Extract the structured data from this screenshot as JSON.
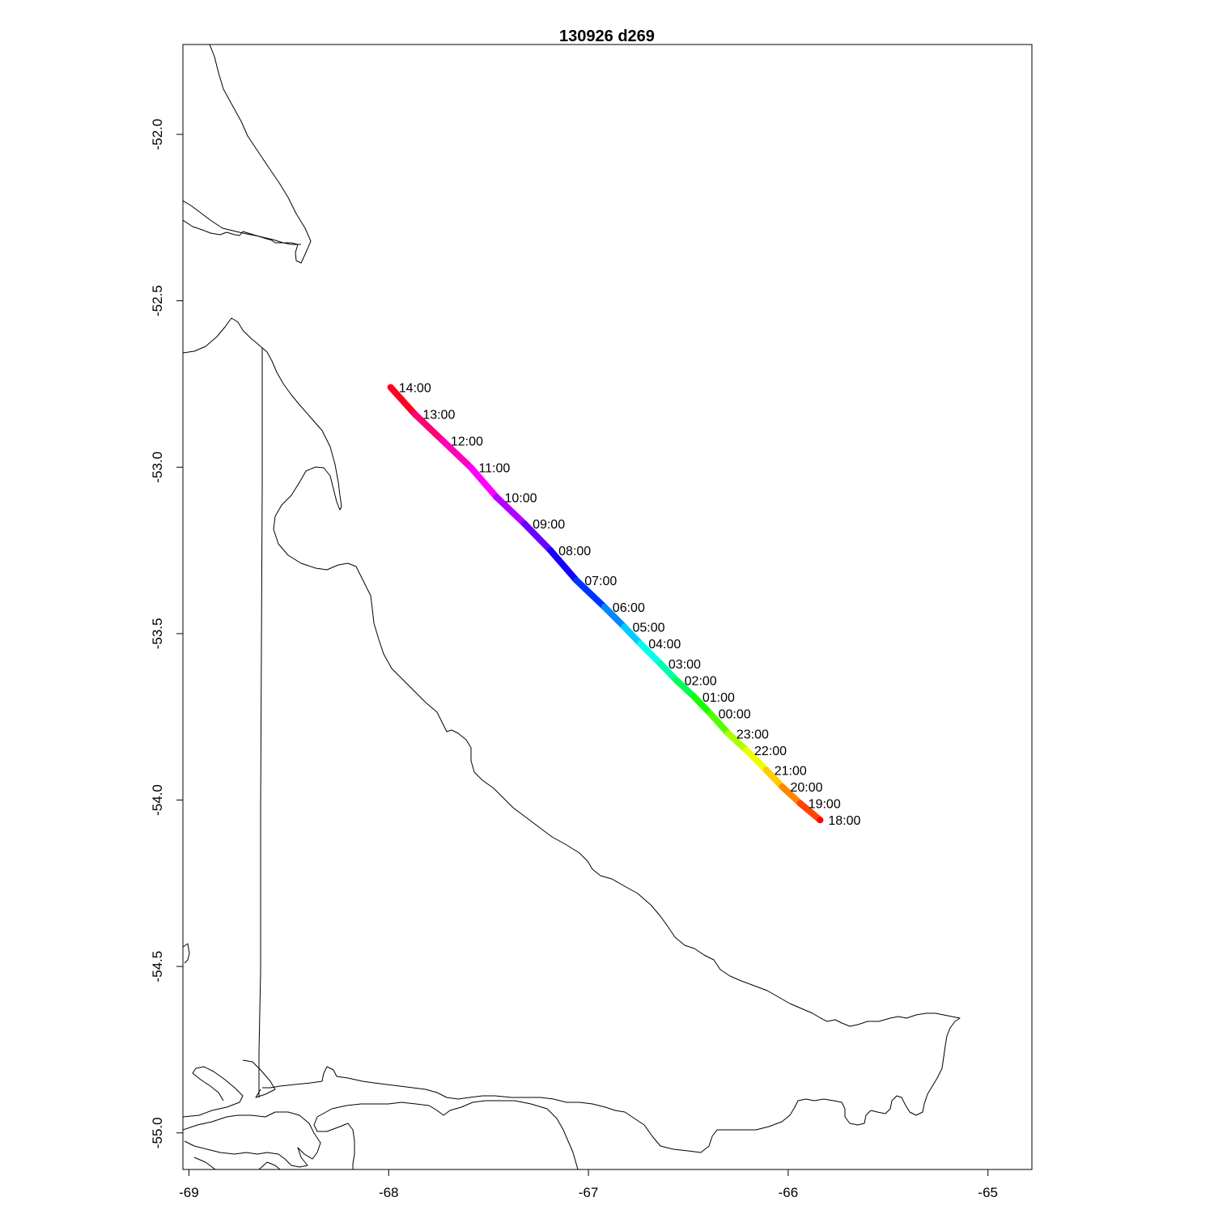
{
  "title": "130926   d269",
  "chart_data": {
    "type": "map",
    "title": "130926   d269",
    "xlabel": "",
    "ylabel": "",
    "xlim": [
      -69.03,
      -64.78
    ],
    "ylim": [
      -55.11,
      -51.73
    ],
    "x_ticks": [
      -69,
      -68,
      -67,
      -66,
      -65
    ],
    "x_tick_labels": [
      "-69",
      "-68",
      "-67",
      "-66",
      "-65"
    ],
    "y_ticks": [
      -52.0,
      -52.5,
      -53.0,
      -53.5,
      -54.0,
      -54.5,
      -55.0
    ],
    "y_tick_labels": [
      "-52.0",
      "-52.5",
      "-53.0",
      "-53.5",
      "-54.0",
      "-54.5",
      "-55.0"
    ],
    "grid": false,
    "track": {
      "color_scale": "rainbow (time)",
      "points": [
        {
          "label": "14:00",
          "lon": -67.99,
          "lat": -52.76,
          "color": "#ff0022"
        },
        {
          "label": "13:00",
          "lon": -67.87,
          "lat": -52.84,
          "color": "#ff0077"
        },
        {
          "label": "12:00",
          "lon": -67.73,
          "lat": -52.92,
          "color": "#ff00bb"
        },
        {
          "label": "11:00",
          "lon": -67.59,
          "lat": -53.0,
          "color": "#ff00ff"
        },
        {
          "label": "10:00",
          "lon": -67.46,
          "lat": -53.09,
          "color": "#b400ff"
        },
        {
          "label": "09:00",
          "lon": -67.32,
          "lat": -53.17,
          "color": "#6a00ff"
        },
        {
          "label": "08:00",
          "lon": -67.19,
          "lat": -53.25,
          "color": "#1600ff"
        },
        {
          "label": "07:00",
          "lon": -67.06,
          "lat": -53.34,
          "color": "#0033ff"
        },
        {
          "label": "06:00",
          "lon": -66.92,
          "lat": -53.42,
          "color": "#0088ff"
        },
        {
          "label": "05:00",
          "lon": -66.82,
          "lat": -53.48,
          "color": "#00ccff"
        },
        {
          "label": "04:00",
          "lon": -66.74,
          "lat": -53.53,
          "color": "#00ffee"
        },
        {
          "label": "03:00",
          "lon": -66.64,
          "lat": -53.59,
          "color": "#00ffaa"
        },
        {
          "label": "02:00",
          "lon": -66.56,
          "lat": -53.64,
          "color": "#00ff55"
        },
        {
          "label": "01:00",
          "lon": -66.47,
          "lat": -53.69,
          "color": "#11ff00"
        },
        {
          "label": "00:00",
          "lon": -66.39,
          "lat": -53.74,
          "color": "#55ff00"
        },
        {
          "label": "23:00",
          "lon": -66.3,
          "lat": -53.8,
          "color": "#aaff00"
        },
        {
          "label": "22:00",
          "lon": -66.21,
          "lat": -53.85,
          "color": "#eeff00"
        },
        {
          "label": "21:00",
          "lon": -66.11,
          "lat": -53.91,
          "color": "#ffcc00"
        },
        {
          "label": "20:00",
          "lon": -66.03,
          "lat": -53.96,
          "color": "#ff8800"
        },
        {
          "label": "19:00",
          "lon": -65.94,
          "lat": -54.01,
          "color": "#ff4400"
        },
        {
          "label": "18:00",
          "lon": -65.84,
          "lat": -54.06,
          "color": "#ff0000"
        }
      ]
    }
  }
}
